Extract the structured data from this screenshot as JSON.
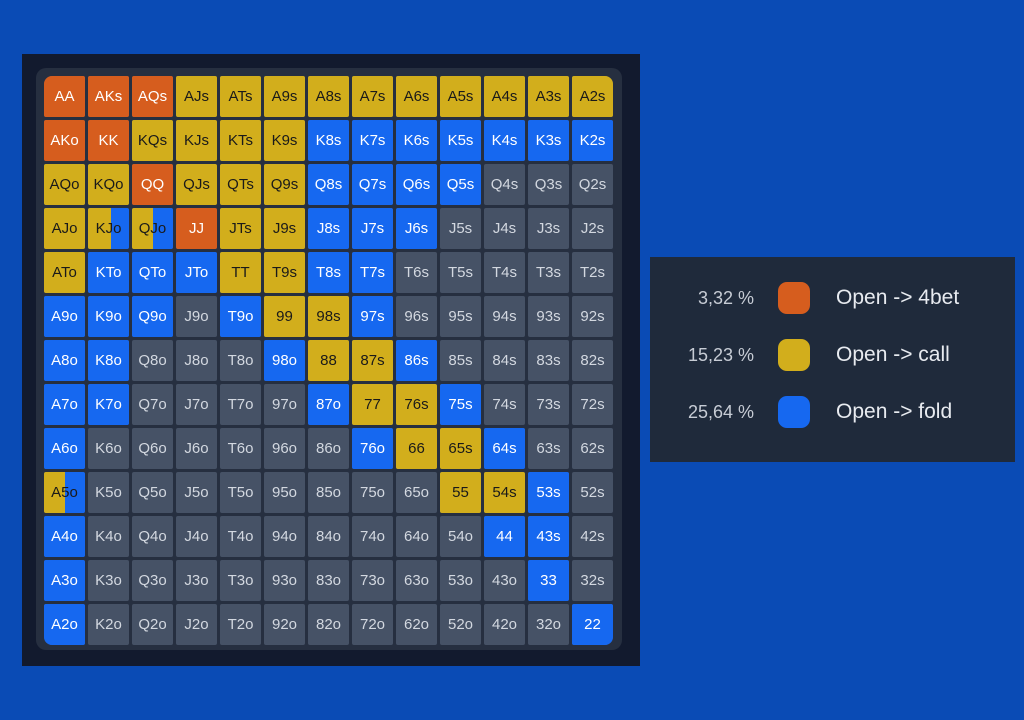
{
  "colors": {
    "background": "#0a4bb5",
    "fourbet": "#d65d1e",
    "call": "#d2ae1c",
    "fold": "#1668f0",
    "none": "#465266"
  },
  "grid": {
    "rows": [
      [
        {
          "label": "AA",
          "mix": [
            [
              "fourbet",
              1
            ]
          ]
        },
        {
          "label": "AKs",
          "mix": [
            [
              "fourbet",
              1
            ]
          ]
        },
        {
          "label": "AQs",
          "mix": [
            [
              "fourbet",
              1
            ]
          ]
        },
        {
          "label": "AJs",
          "mix": [
            [
              "call",
              1
            ]
          ]
        },
        {
          "label": "ATs",
          "mix": [
            [
              "call",
              1
            ]
          ]
        },
        {
          "label": "A9s",
          "mix": [
            [
              "call",
              1
            ]
          ]
        },
        {
          "label": "A8s",
          "mix": [
            [
              "call",
              1
            ]
          ]
        },
        {
          "label": "A7s",
          "mix": [
            [
              "call",
              1
            ]
          ]
        },
        {
          "label": "A6s",
          "mix": [
            [
              "call",
              1
            ]
          ]
        },
        {
          "label": "A5s",
          "mix": [
            [
              "call",
              1
            ]
          ]
        },
        {
          "label": "A4s",
          "mix": [
            [
              "call",
              1
            ]
          ]
        },
        {
          "label": "A3s",
          "mix": [
            [
              "call",
              1
            ]
          ]
        },
        {
          "label": "A2s",
          "mix": [
            [
              "call",
              1
            ]
          ]
        }
      ],
      [
        {
          "label": "AKo",
          "mix": [
            [
              "fourbet",
              1
            ]
          ]
        },
        {
          "label": "KK",
          "mix": [
            [
              "fourbet",
              1
            ]
          ]
        },
        {
          "label": "KQs",
          "mix": [
            [
              "call",
              1
            ]
          ]
        },
        {
          "label": "KJs",
          "mix": [
            [
              "call",
              1
            ]
          ]
        },
        {
          "label": "KTs",
          "mix": [
            [
              "call",
              1
            ]
          ]
        },
        {
          "label": "K9s",
          "mix": [
            [
              "call",
              1
            ]
          ]
        },
        {
          "label": "K8s",
          "mix": [
            [
              "fold",
              1
            ]
          ]
        },
        {
          "label": "K7s",
          "mix": [
            [
              "fold",
              1
            ]
          ]
        },
        {
          "label": "K6s",
          "mix": [
            [
              "fold",
              1
            ]
          ]
        },
        {
          "label": "K5s",
          "mix": [
            [
              "fold",
              1
            ]
          ]
        },
        {
          "label": "K4s",
          "mix": [
            [
              "fold",
              1
            ]
          ]
        },
        {
          "label": "K3s",
          "mix": [
            [
              "fold",
              1
            ]
          ]
        },
        {
          "label": "K2s",
          "mix": [
            [
              "fold",
              1
            ]
          ]
        }
      ],
      [
        {
          "label": "AQo",
          "mix": [
            [
              "call",
              1
            ]
          ]
        },
        {
          "label": "KQo",
          "mix": [
            [
              "call",
              1
            ]
          ]
        },
        {
          "label": "QQ",
          "mix": [
            [
              "fourbet",
              1
            ]
          ]
        },
        {
          "label": "QJs",
          "mix": [
            [
              "call",
              1
            ]
          ]
        },
        {
          "label": "QTs",
          "mix": [
            [
              "call",
              1
            ]
          ]
        },
        {
          "label": "Q9s",
          "mix": [
            [
              "call",
              1
            ]
          ]
        },
        {
          "label": "Q8s",
          "mix": [
            [
              "fold",
              1
            ]
          ]
        },
        {
          "label": "Q7s",
          "mix": [
            [
              "fold",
              1
            ]
          ]
        },
        {
          "label": "Q6s",
          "mix": [
            [
              "fold",
              1
            ]
          ]
        },
        {
          "label": "Q5s",
          "mix": [
            [
              "fold",
              1
            ]
          ]
        },
        {
          "label": "Q4s",
          "mix": []
        },
        {
          "label": "Q3s",
          "mix": []
        },
        {
          "label": "Q2s",
          "mix": []
        }
      ],
      [
        {
          "label": "AJo",
          "mix": [
            [
              "call",
              1
            ]
          ]
        },
        {
          "label": "KJo",
          "mix": [
            [
              "call",
              0.55
            ],
            [
              "fold",
              0.45
            ]
          ]
        },
        {
          "label": "QJo",
          "mix": [
            [
              "call",
              0.5
            ],
            [
              "fold",
              0.5
            ]
          ]
        },
        {
          "label": "JJ",
          "mix": [
            [
              "fourbet",
              1
            ]
          ]
        },
        {
          "label": "JTs",
          "mix": [
            [
              "call",
              1
            ]
          ]
        },
        {
          "label": "J9s",
          "mix": [
            [
              "call",
              1
            ]
          ]
        },
        {
          "label": "J8s",
          "mix": [
            [
              "fold",
              1
            ]
          ]
        },
        {
          "label": "J7s",
          "mix": [
            [
              "fold",
              1
            ]
          ]
        },
        {
          "label": "J6s",
          "mix": [
            [
              "fold",
              1
            ]
          ]
        },
        {
          "label": "J5s",
          "mix": []
        },
        {
          "label": "J4s",
          "mix": []
        },
        {
          "label": "J3s",
          "mix": []
        },
        {
          "label": "J2s",
          "mix": []
        }
      ],
      [
        {
          "label": "ATo",
          "mix": [
            [
              "call",
              1
            ]
          ]
        },
        {
          "label": "KTo",
          "mix": [
            [
              "fold",
              1
            ]
          ]
        },
        {
          "label": "QTo",
          "mix": [
            [
              "fold",
              1
            ]
          ]
        },
        {
          "label": "JTo",
          "mix": [
            [
              "fold",
              1
            ]
          ]
        },
        {
          "label": "TT",
          "mix": [
            [
              "call",
              1
            ]
          ]
        },
        {
          "label": "T9s",
          "mix": [
            [
              "call",
              1
            ]
          ]
        },
        {
          "label": "T8s",
          "mix": [
            [
              "fold",
              1
            ]
          ]
        },
        {
          "label": "T7s",
          "mix": [
            [
              "fold",
              1
            ]
          ]
        },
        {
          "label": "T6s",
          "mix": []
        },
        {
          "label": "T5s",
          "mix": []
        },
        {
          "label": "T4s",
          "mix": []
        },
        {
          "label": "T3s",
          "mix": []
        },
        {
          "label": "T2s",
          "mix": []
        }
      ],
      [
        {
          "label": "A9o",
          "mix": [
            [
              "fold",
              1
            ]
          ]
        },
        {
          "label": "K9o",
          "mix": [
            [
              "fold",
              1
            ]
          ]
        },
        {
          "label": "Q9o",
          "mix": [
            [
              "fold",
              1
            ]
          ]
        },
        {
          "label": "J9o",
          "mix": []
        },
        {
          "label": "T9o",
          "mix": [
            [
              "fold",
              1
            ]
          ]
        },
        {
          "label": "99",
          "mix": [
            [
              "call",
              1
            ]
          ]
        },
        {
          "label": "98s",
          "mix": [
            [
              "call",
              1
            ]
          ]
        },
        {
          "label": "97s",
          "mix": [
            [
              "fold",
              1
            ]
          ]
        },
        {
          "label": "96s",
          "mix": []
        },
        {
          "label": "95s",
          "mix": []
        },
        {
          "label": "94s",
          "mix": []
        },
        {
          "label": "93s",
          "mix": []
        },
        {
          "label": "92s",
          "mix": []
        }
      ],
      [
        {
          "label": "A8o",
          "mix": [
            [
              "fold",
              1
            ]
          ]
        },
        {
          "label": "K8o",
          "mix": [
            [
              "fold",
              1
            ]
          ]
        },
        {
          "label": "Q8o",
          "mix": []
        },
        {
          "label": "J8o",
          "mix": []
        },
        {
          "label": "T8o",
          "mix": []
        },
        {
          "label": "98o",
          "mix": [
            [
              "fold",
              1
            ]
          ]
        },
        {
          "label": "88",
          "mix": [
            [
              "call",
              1
            ]
          ]
        },
        {
          "label": "87s",
          "mix": [
            [
              "call",
              1
            ]
          ]
        },
        {
          "label": "86s",
          "mix": [
            [
              "fold",
              1
            ]
          ]
        },
        {
          "label": "85s",
          "mix": []
        },
        {
          "label": "84s",
          "mix": []
        },
        {
          "label": "83s",
          "mix": []
        },
        {
          "label": "82s",
          "mix": []
        }
      ],
      [
        {
          "label": "A7o",
          "mix": [
            [
              "fold",
              1
            ]
          ]
        },
        {
          "label": "K7o",
          "mix": [
            [
              "fold",
              1
            ]
          ]
        },
        {
          "label": "Q7o",
          "mix": []
        },
        {
          "label": "J7o",
          "mix": []
        },
        {
          "label": "T7o",
          "mix": []
        },
        {
          "label": "97o",
          "mix": []
        },
        {
          "label": "87o",
          "mix": [
            [
              "fold",
              1
            ]
          ]
        },
        {
          "label": "77",
          "mix": [
            [
              "call",
              1
            ]
          ]
        },
        {
          "label": "76s",
          "mix": [
            [
              "call",
              1
            ]
          ]
        },
        {
          "label": "75s",
          "mix": [
            [
              "fold",
              1
            ]
          ]
        },
        {
          "label": "74s",
          "mix": []
        },
        {
          "label": "73s",
          "mix": []
        },
        {
          "label": "72s",
          "mix": []
        }
      ],
      [
        {
          "label": "A6o",
          "mix": [
            [
              "fold",
              1
            ]
          ]
        },
        {
          "label": "K6o",
          "mix": []
        },
        {
          "label": "Q6o",
          "mix": []
        },
        {
          "label": "J6o",
          "mix": []
        },
        {
          "label": "T6o",
          "mix": []
        },
        {
          "label": "96o",
          "mix": []
        },
        {
          "label": "86o",
          "mix": []
        },
        {
          "label": "76o",
          "mix": [
            [
              "fold",
              1
            ]
          ]
        },
        {
          "label": "66",
          "mix": [
            [
              "call",
              1
            ]
          ]
        },
        {
          "label": "65s",
          "mix": [
            [
              "call",
              1
            ]
          ]
        },
        {
          "label": "64s",
          "mix": [
            [
              "fold",
              1
            ]
          ]
        },
        {
          "label": "63s",
          "mix": []
        },
        {
          "label": "62s",
          "mix": []
        }
      ],
      [
        {
          "label": "A5o",
          "mix": [
            [
              "call",
              0.5
            ],
            [
              "fold",
              0.5
            ]
          ]
        },
        {
          "label": "K5o",
          "mix": []
        },
        {
          "label": "Q5o",
          "mix": []
        },
        {
          "label": "J5o",
          "mix": []
        },
        {
          "label": "T5o",
          "mix": []
        },
        {
          "label": "95o",
          "mix": []
        },
        {
          "label": "85o",
          "mix": []
        },
        {
          "label": "75o",
          "mix": []
        },
        {
          "label": "65o",
          "mix": []
        },
        {
          "label": "55",
          "mix": [
            [
              "call",
              1
            ]
          ]
        },
        {
          "label": "54s",
          "mix": [
            [
              "call",
              1
            ]
          ]
        },
        {
          "label": "53s",
          "mix": [
            [
              "fold",
              1
            ]
          ]
        },
        {
          "label": "52s",
          "mix": []
        }
      ],
      [
        {
          "label": "A4o",
          "mix": [
            [
              "fold",
              1
            ]
          ]
        },
        {
          "label": "K4o",
          "mix": []
        },
        {
          "label": "Q4o",
          "mix": []
        },
        {
          "label": "J4o",
          "mix": []
        },
        {
          "label": "T4o",
          "mix": []
        },
        {
          "label": "94o",
          "mix": []
        },
        {
          "label": "84o",
          "mix": []
        },
        {
          "label": "74o",
          "mix": []
        },
        {
          "label": "64o",
          "mix": []
        },
        {
          "label": "54o",
          "mix": []
        },
        {
          "label": "44",
          "mix": [
            [
              "fold",
              1
            ]
          ]
        },
        {
          "label": "43s",
          "mix": [
            [
              "fold",
              1
            ]
          ]
        },
        {
          "label": "42s",
          "mix": []
        }
      ],
      [
        {
          "label": "A3o",
          "mix": [
            [
              "fold",
              1
            ]
          ]
        },
        {
          "label": "K3o",
          "mix": []
        },
        {
          "label": "Q3o",
          "mix": []
        },
        {
          "label": "J3o",
          "mix": []
        },
        {
          "label": "T3o",
          "mix": []
        },
        {
          "label": "93o",
          "mix": []
        },
        {
          "label": "83o",
          "mix": []
        },
        {
          "label": "73o",
          "mix": []
        },
        {
          "label": "63o",
          "mix": []
        },
        {
          "label": "53o",
          "mix": []
        },
        {
          "label": "43o",
          "mix": []
        },
        {
          "label": "33",
          "mix": [
            [
              "fold",
              1
            ]
          ]
        },
        {
          "label": "32s",
          "mix": []
        }
      ],
      [
        {
          "label": "A2o",
          "mix": [
            [
              "fold",
              1
            ]
          ]
        },
        {
          "label": "K2o",
          "mix": []
        },
        {
          "label": "Q2o",
          "mix": []
        },
        {
          "label": "J2o",
          "mix": []
        },
        {
          "label": "T2o",
          "mix": []
        },
        {
          "label": "92o",
          "mix": []
        },
        {
          "label": "82o",
          "mix": []
        },
        {
          "label": "72o",
          "mix": []
        },
        {
          "label": "62o",
          "mix": []
        },
        {
          "label": "52o",
          "mix": []
        },
        {
          "label": "42o",
          "mix": []
        },
        {
          "label": "32o",
          "mix": []
        },
        {
          "label": "22",
          "mix": [
            [
              "fold",
              1
            ]
          ]
        }
      ]
    ]
  },
  "legend": {
    "items": [
      {
        "key": "fourbet",
        "percent": "3,32 %",
        "label": "Open -> 4bet"
      },
      {
        "key": "call",
        "percent": "15,23 %",
        "label": "Open -> call"
      },
      {
        "key": "fold",
        "percent": "25,64 %",
        "label": "Open -> fold"
      }
    ]
  }
}
